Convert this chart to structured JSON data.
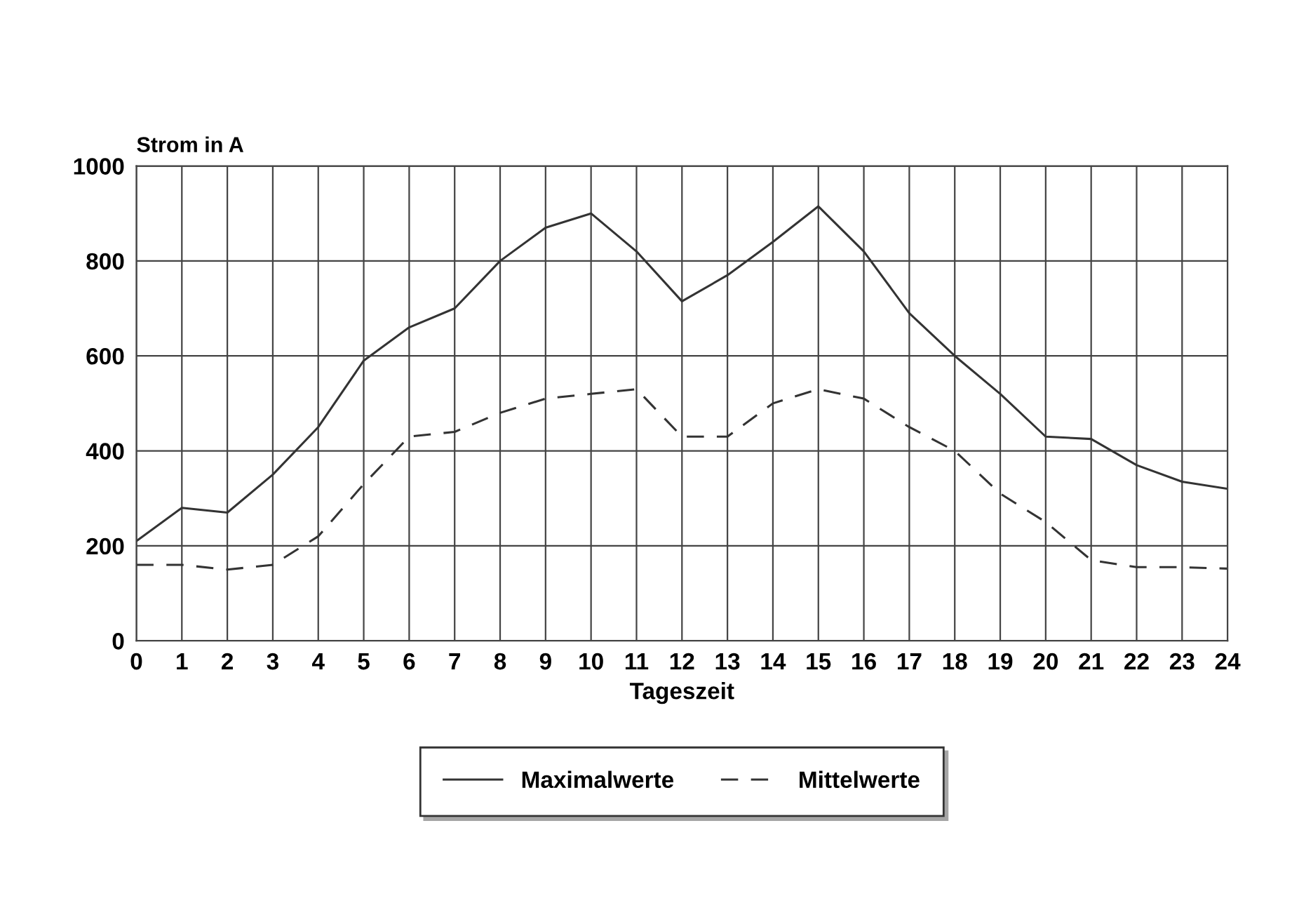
{
  "chart_data": {
    "type": "line",
    "ylabel": "Strom in A",
    "xlabel": "Tageszeit",
    "x": [
      0,
      1,
      2,
      3,
      4,
      5,
      6,
      7,
      8,
      9,
      10,
      11,
      12,
      13,
      14,
      15,
      16,
      17,
      18,
      19,
      20,
      21,
      22,
      23,
      24
    ],
    "series": [
      {
        "name": "Maximalwerte",
        "color": "#333333",
        "line_style": "solid",
        "values": [
          210,
          280,
          270,
          350,
          450,
          590,
          660,
          700,
          800,
          870,
          900,
          820,
          715,
          770,
          840,
          915,
          820,
          690,
          600,
          520,
          430,
          425,
          370,
          335,
          320
        ]
      },
      {
        "name": "Mittelwerte",
        "color": "#333333",
        "line_style": "dashed",
        "values": [
          160,
          160,
          150,
          160,
          220,
          330,
          430,
          440,
          480,
          510,
          520,
          530,
          430,
          430,
          500,
          530,
          510,
          450,
          400,
          310,
          250,
          170,
          155,
          155,
          152
        ]
      }
    ],
    "xlim": [
      0,
      24
    ],
    "xticks": [
      0,
      1,
      2,
      3,
      4,
      5,
      6,
      7,
      8,
      9,
      10,
      11,
      12,
      13,
      14,
      15,
      16,
      17,
      18,
      19,
      20,
      21,
      22,
      23,
      24
    ],
    "ylim": [
      0,
      1000
    ],
    "yticks": [
      0,
      200,
      400,
      600,
      800,
      1000
    ],
    "grid": true,
    "legend": "bottom",
    "marker": "none"
  }
}
